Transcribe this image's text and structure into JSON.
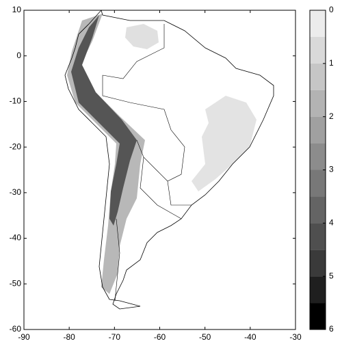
{
  "map": {
    "xlim": [
      -90,
      -30
    ],
    "xticks": [
      -90,
      -80,
      -70,
      -60,
      -50,
      -40,
      -30
    ],
    "ylim": [
      -60,
      10
    ],
    "yticks": [
      10,
      0,
      -10,
      -20,
      -30,
      -40,
      -50,
      -60
    ],
    "colorbar": {
      "lim": [
        0,
        6
      ],
      "ticks": [
        0,
        1,
        2,
        3,
        4,
        5,
        6
      ],
      "levels": [
        0,
        0.5,
        1,
        1.5,
        2,
        2.5,
        3,
        3.5,
        4,
        4.5,
        5,
        5.5,
        6
      ],
      "colors": [
        "#ffffff",
        "#ececec",
        "#d9d9d9",
        "#c6c6c6",
        "#b3b3b3",
        "#a0a0a0",
        "#8c8c8c",
        "#787878",
        "#646464",
        "#4f4f4f",
        "#3a3a3a",
        "#1f1f1f",
        "#000000"
      ]
    }
  }
}
